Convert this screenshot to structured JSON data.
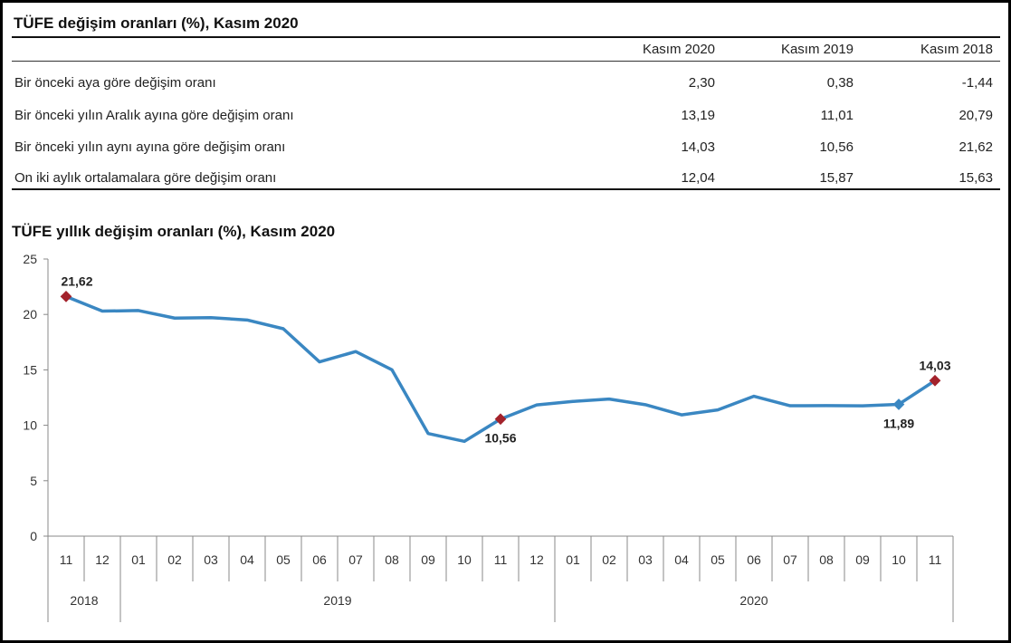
{
  "table": {
    "title": "TÜFE değişim oranları (%), Kasım 2020",
    "columns": [
      "Kasım 2020",
      "Kasım 2019",
      "Kasım 2018"
    ],
    "rows": [
      {
        "label": "Bir önceki aya göre değişim oranı",
        "values": [
          "2,30",
          "0,38",
          "-1,44"
        ]
      },
      {
        "label": "Bir önceki yılın Aralık ayına göre değişim oranı",
        "values": [
          "13,19",
          "11,01",
          "20,79"
        ]
      },
      {
        "label": "Bir önceki yılın aynı ayına göre değişim oranı",
        "values": [
          "14,03",
          "10,56",
          "21,62"
        ]
      },
      {
        "label": "On iki aylık ortalamalara göre değişim oranı",
        "values": [
          "12,04",
          "15,87",
          "15,63"
        ]
      }
    ]
  },
  "chart_data": {
    "type": "line",
    "title": "TÜFE yıllık değişim oranları (%), Kasım 2020",
    "xlabel": "",
    "ylabel": "",
    "ylim": [
      0,
      25
    ],
    "yticks": [
      "0",
      "5",
      "10",
      "15",
      "20",
      "25"
    ],
    "categories": [
      "11",
      "12",
      "01",
      "02",
      "03",
      "04",
      "05",
      "06",
      "07",
      "08",
      "09",
      "10",
      "11",
      "12",
      "01",
      "02",
      "03",
      "04",
      "05",
      "06",
      "07",
      "08",
      "09",
      "10",
      "11"
    ],
    "years": [
      {
        "label": "2018",
        "span": 2
      },
      {
        "label": "2019",
        "span": 12
      },
      {
        "label": "2020",
        "span": 11
      }
    ],
    "series": [
      {
        "name": "TÜFE yıllık değişim",
        "color": "#3a87c2",
        "values": [
          21.62,
          20.3,
          20.35,
          19.67,
          19.71,
          19.5,
          18.71,
          15.72,
          16.65,
          15.01,
          9.26,
          8.55,
          10.56,
          11.84,
          12.15,
          12.37,
          11.86,
          10.94,
          11.39,
          12.62,
          11.76,
          11.77,
          11.75,
          11.89,
          14.03
        ]
      }
    ],
    "annotations": [
      {
        "index": 0,
        "label": "21,62",
        "marker_color": "#a3222b",
        "position": "above"
      },
      {
        "index": 12,
        "label": "10,56",
        "marker_color": "#a3222b",
        "position": "below"
      },
      {
        "index": 23,
        "label": "11,89",
        "marker_color": "#3a87c2",
        "position": "below"
      },
      {
        "index": 24,
        "label": "14,03",
        "marker_color": "#a3222b",
        "position": "above"
      }
    ],
    "grid": false
  }
}
